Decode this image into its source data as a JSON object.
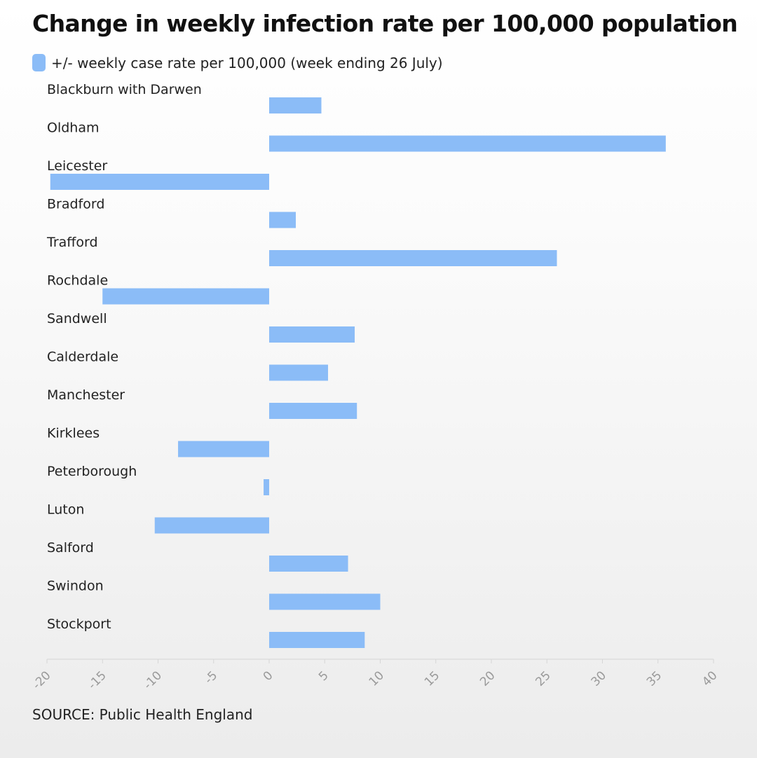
{
  "title": "Change in weekly infection rate per 100,000 population",
  "legend": {
    "label": "+/- weekly case rate per 100,000 (week ending 26 July)"
  },
  "source": "SOURCE: Public Health England",
  "colors": {
    "bar": "#8bbcf7",
    "axis": "#d6d6d6",
    "tick_label": "#9a9a9a",
    "category_label": "#222222"
  },
  "chart_data": {
    "type": "bar",
    "orientation": "horizontal",
    "series": [
      {
        "name": "+/- weekly case rate per 100,000 (week ending 26 July)",
        "values": [
          4.7,
          35.7,
          -19.7,
          2.4,
          25.9,
          -15.0,
          7.7,
          5.3,
          7.9,
          -8.2,
          -0.5,
          -10.3,
          7.1,
          10.0,
          8.6
        ]
      }
    ],
    "categories": [
      "Blackburn with Darwen",
      "Oldham",
      "Leicester",
      "Bradford",
      "Trafford",
      "Rochdale",
      "Sandwell",
      "Calderdale",
      "Manchester",
      "Kirklees",
      "Peterborough",
      "Luton",
      "Salford",
      "Swindon",
      "Stockport"
    ],
    "xlim": [
      -20,
      40
    ],
    "xticks": [
      "-20",
      "-15",
      "-10",
      "-5",
      "0",
      "5",
      "10",
      "15",
      "20",
      "25",
      "30",
      "35",
      "40"
    ],
    "xtick_values": [
      -20,
      -15,
      -10,
      -5,
      0,
      5,
      10,
      15,
      20,
      25,
      30,
      35,
      40
    ],
    "xlabel": "",
    "ylabel": "",
    "grid": false,
    "legend_position": "top-left"
  }
}
